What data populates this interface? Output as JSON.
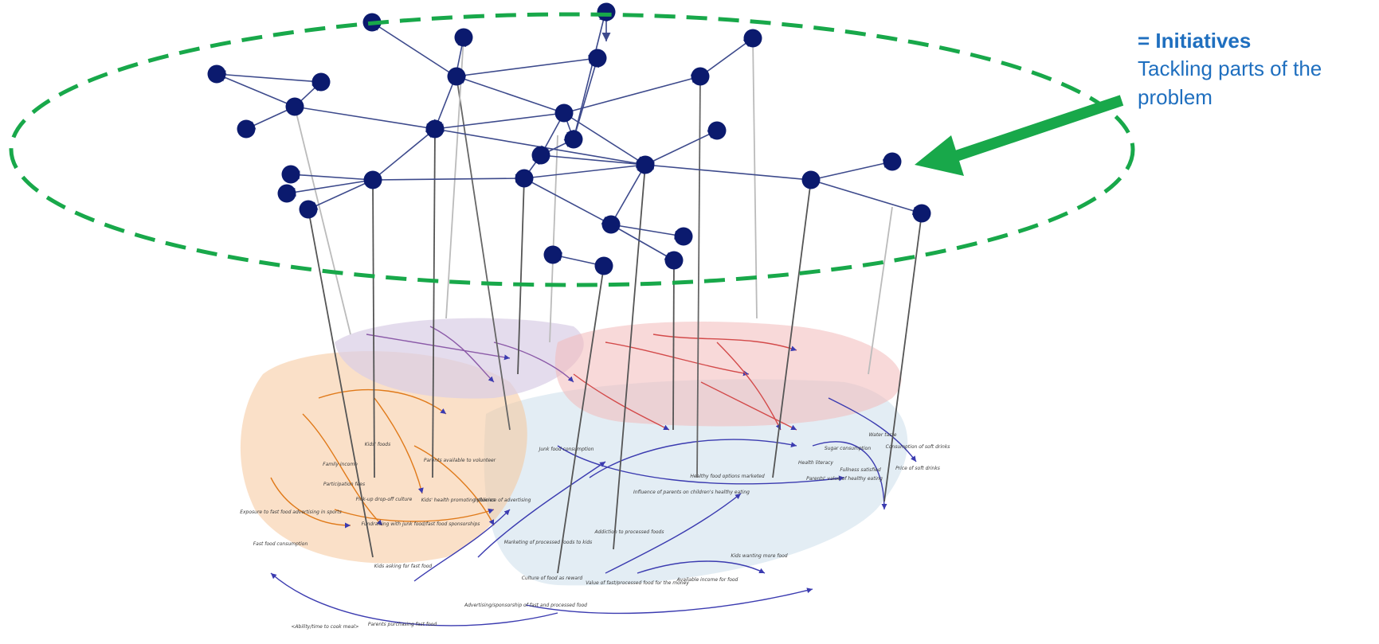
{
  "legend": {
    "title": "= Initiatives",
    "description": "Tackling parts of the problem"
  },
  "colors": {
    "node": "#0b1a6e",
    "ellipse": "#18a84a",
    "arrow": "#18a84a",
    "edge": "#3d4a8c",
    "cluster_orange": "#f6c79a",
    "cluster_purple": "#d8cde6",
    "cluster_pink": "#f2b9b9",
    "cluster_blue": "#d7e5ef"
  },
  "causal_loop_labels": [
    "Fast food consumption",
    "Exposure to fast food advertising in sports",
    "Kids asking for fast food",
    "Parents purchasing fast food",
    "<Ability/time to cook meal>",
    "Advertising/sponsorship of fast and processed food",
    "Culture of food as reward",
    "Value of fast/processed food for the money",
    "Available income for food",
    "Kids wanting more food",
    "Addiction to processed foods",
    "Marketing of processed foods to kids",
    "Influence of advertising",
    "Junk food consumption",
    "Influence of parents on children's healthy eating",
    "Parents' value of healthy eating",
    "Healthy food options marketed",
    "Fullness satisfied",
    "Consumption of soft drinks",
    "Price of soft drinks",
    "Water taste",
    "Sugar consumption",
    "Health literacy",
    "Kids' health promoting policies",
    "Family income",
    "Participation fees",
    "Pick-up drop-off culture",
    "Parents available to volunteer",
    "Kids' foods",
    "Fundraising with junk food/fast food sponsorships"
  ]
}
